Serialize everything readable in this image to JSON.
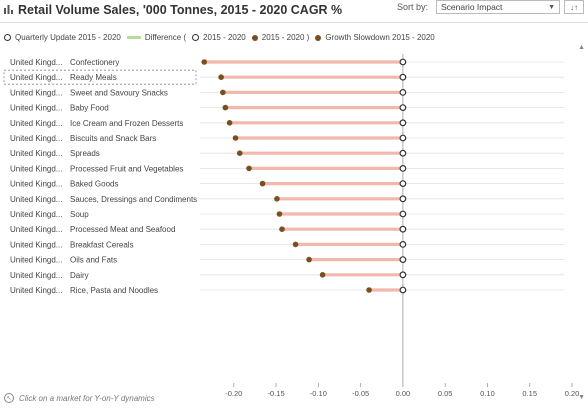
{
  "header": {
    "title": "Retail Volume Sales, '000 Tonnes, 2015 - 2020 CAGR %",
    "sort_label": "Sort by:",
    "sort_value": "Scenario Impact",
    "sort_button": "↓↑"
  },
  "legend": {
    "quarterly": "Quarterly Update 2015 - 2020",
    "difference": "Difference (",
    "period_a": "2015 - 2020",
    "period_b": "2015 - 2020 )",
    "slowdown": "Growth Slowdown 2015 - 2020"
  },
  "footer": {
    "hint": "Click on a market for Y-on-Y dynamics"
  },
  "colors": {
    "difference_line": "#f2b8ae",
    "legend_difference": "#b7dc9b",
    "baseline_marker": "#333333",
    "slowdown_marker": "#7a4e1f",
    "gridline": "#e0e0e0",
    "zero_line": "#999999"
  },
  "chart_data": {
    "type": "dumbbell",
    "title": "Retail Volume Sales, '000 Tonnes, 2015 - 2020 CAGR %",
    "rows": [
      {
        "market": "United Kingd...",
        "category": "Confectionery",
        "quarterly": 0.0,
        "slowdown": -0.235
      },
      {
        "market": "United Kingd...",
        "category": "Ready Meals",
        "quarterly": 0.0,
        "slowdown": -0.215
      },
      {
        "market": "United Kingd...",
        "category": "Sweet and Savoury Snacks",
        "quarterly": 0.0,
        "slowdown": -0.213
      },
      {
        "market": "United Kingd...",
        "category": "Baby Food",
        "quarterly": 0.0,
        "slowdown": -0.21
      },
      {
        "market": "United Kingd...",
        "category": "Ice Cream and Frozen Desserts",
        "quarterly": 0.0,
        "slowdown": -0.205
      },
      {
        "market": "United Kingd...",
        "category": "Biscuits and Snack Bars",
        "quarterly": 0.0,
        "slowdown": -0.198
      },
      {
        "market": "United Kingd...",
        "category": "Spreads",
        "quarterly": 0.0,
        "slowdown": -0.193
      },
      {
        "market": "United Kingd...",
        "category": "Processed Fruit and Vegetables",
        "quarterly": 0.0,
        "slowdown": -0.182
      },
      {
        "market": "United Kingd...",
        "category": "Baked Goods",
        "quarterly": 0.0,
        "slowdown": -0.166
      },
      {
        "market": "United Kingd...",
        "category": "Sauces, Dressings and Condiments",
        "quarterly": 0.0,
        "slowdown": -0.149
      },
      {
        "market": "United Kingd...",
        "category": "Soup",
        "quarterly": 0.0,
        "slowdown": -0.146
      },
      {
        "market": "United Kingd...",
        "category": "Processed Meat and Seafood",
        "quarterly": 0.0,
        "slowdown": -0.143
      },
      {
        "market": "United Kingd...",
        "category": "Breakfast Cereals",
        "quarterly": 0.0,
        "slowdown": -0.127
      },
      {
        "market": "United Kingd...",
        "category": "Oils and Fats",
        "quarterly": 0.0,
        "slowdown": -0.111
      },
      {
        "market": "United Kingd...",
        "category": "Dairy",
        "quarterly": 0.0,
        "slowdown": -0.095
      },
      {
        "market": "United Kingd...",
        "category": "Rice, Pasta and Noodles",
        "quarterly": 0.0,
        "slowdown": -0.04
      }
    ],
    "xlim": [
      -0.24,
      0.2
    ],
    "xticks": [
      -0.2,
      -0.15,
      -0.1,
      -0.05,
      0.0,
      0.05,
      0.1,
      0.15,
      0.2
    ],
    "xtick_labels": [
      "-0.20",
      "-0.15",
      "-0.10",
      "-0.05",
      "0.00",
      "0.05",
      "0.10",
      "0.15",
      "0.20"
    ],
    "grid": "horizontal",
    "highlighted_row": "Ready Meals"
  }
}
